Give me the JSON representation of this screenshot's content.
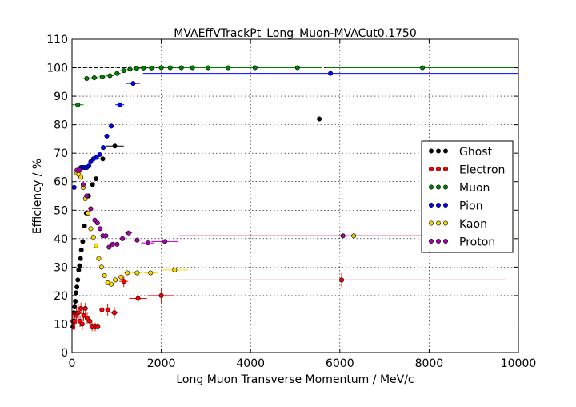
{
  "chart_data": {
    "type": "scatter",
    "title": "MVAEffVTrackPt_Long_Muon-MVACut0.1750",
    "xlabel": "Long Muon Transverse Momentum / MeV/c",
    "ylabel": "Efficiency / %",
    "xlim": [
      0,
      10000
    ],
    "ylim": [
      0,
      110
    ],
    "xticks": [
      0,
      2000,
      4000,
      6000,
      8000,
      10000
    ],
    "yticks": [
      0,
      10,
      20,
      30,
      40,
      50,
      60,
      70,
      80,
      90,
      100,
      110
    ],
    "grid": true,
    "legend_position": "center-right",
    "reference_line": 100,
    "series": [
      {
        "name": "Ghost",
        "color": "#000000",
        "points": [
          {
            "x": 20,
            "y": 9,
            "xerr": 20,
            "yerr": 0.6
          },
          {
            "x": 45,
            "y": 14,
            "xerr": 20,
            "yerr": 0.6
          },
          {
            "x": 60,
            "y": 16,
            "xerr": 20,
            "yerr": 0.6
          },
          {
            "x": 75,
            "y": 18,
            "xerr": 20,
            "yerr": 0.6
          },
          {
            "x": 90,
            "y": 21,
            "xerr": 20,
            "yerr": 0.6
          },
          {
            "x": 110,
            "y": 23,
            "xerr": 20,
            "yerr": 0.6
          },
          {
            "x": 130,
            "y": 25.5,
            "xerr": 20,
            "yerr": 0.6
          },
          {
            "x": 150,
            "y": 29,
            "xerr": 20,
            "yerr": 0.6
          },
          {
            "x": 170,
            "y": 30.5,
            "xerr": 20,
            "yerr": 0.6
          },
          {
            "x": 190,
            "y": 33,
            "xerr": 20,
            "yerr": 0.6
          },
          {
            "x": 210,
            "y": 36,
            "xerr": 20,
            "yerr": 0.6
          },
          {
            "x": 240,
            "y": 39,
            "xerr": 25,
            "yerr": 0.6
          },
          {
            "x": 280,
            "y": 44.5,
            "xerr": 25,
            "yerr": 0.6
          },
          {
            "x": 320,
            "y": 49,
            "xerr": 25,
            "yerr": 0.6
          },
          {
            "x": 370,
            "y": 55,
            "xerr": 30,
            "yerr": 0.6
          },
          {
            "x": 460,
            "y": 59,
            "xerr": 40,
            "yerr": 0.6
          },
          {
            "x": 540,
            "y": 61,
            "xerr": 40,
            "yerr": 0.6
          },
          {
            "x": 690,
            "y": 68,
            "xerr": 80,
            "yerr": 0.6
          },
          {
            "x": 960,
            "y": 72.5,
            "xerr": 200,
            "yerr": 0.6
          },
          {
            "x": 5540,
            "y": 82,
            "xerr": 4400,
            "yerr": 0.6
          }
        ]
      },
      {
        "name": "Electron",
        "color": "#ff0000",
        "points": [
          {
            "x": 20,
            "y": 11,
            "xerr": 20,
            "yerr": 3
          },
          {
            "x": 60,
            "y": 11,
            "xerr": 20,
            "yerr": 3
          },
          {
            "x": 100,
            "y": 13,
            "xerr": 20,
            "yerr": 3
          },
          {
            "x": 140,
            "y": 14,
            "xerr": 20,
            "yerr": 3
          },
          {
            "x": 180,
            "y": 11,
            "xerr": 20,
            "yerr": 2
          },
          {
            "x": 200,
            "y": 15.5,
            "xerr": 20,
            "yerr": 2
          },
          {
            "x": 230,
            "y": 10,
            "xerr": 20,
            "yerr": 2
          },
          {
            "x": 260,
            "y": 13,
            "xerr": 20,
            "yerr": 2
          },
          {
            "x": 300,
            "y": 15.5,
            "xerr": 25,
            "yerr": 2
          },
          {
            "x": 340,
            "y": 12,
            "xerr": 25,
            "yerr": 2
          },
          {
            "x": 400,
            "y": 11,
            "xerr": 30,
            "yerr": 2
          },
          {
            "x": 450,
            "y": 9,
            "xerr": 30,
            "yerr": 1.5
          },
          {
            "x": 520,
            "y": 9,
            "xerr": 30,
            "yerr": 1.5
          },
          {
            "x": 580,
            "y": 9,
            "xerr": 30,
            "yerr": 1.5
          },
          {
            "x": 670,
            "y": 15,
            "xerr": 50,
            "yerr": 2
          },
          {
            "x": 800,
            "y": 15,
            "xerr": 50,
            "yerr": 2
          },
          {
            "x": 950,
            "y": 14,
            "xerr": 80,
            "yerr": 2
          },
          {
            "x": 1160,
            "y": 25,
            "xerr": 100,
            "yerr": 2
          },
          {
            "x": 1480,
            "y": 19,
            "xerr": 200,
            "yerr": 2.5
          },
          {
            "x": 2000,
            "y": 20,
            "xerr": 300,
            "yerr": 2.5
          },
          {
            "x": 6040,
            "y": 25.5,
            "xerr": 3700,
            "yerr": 2.5
          }
        ]
      },
      {
        "name": "Muon",
        "color": "#008000",
        "points": [
          {
            "x": 130,
            "y": 87,
            "xerr": 130,
            "yerr": 0.5
          },
          {
            "x": 330,
            "y": 96.2,
            "xerr": 70,
            "yerr": 0.4
          },
          {
            "x": 500,
            "y": 96.5,
            "xerr": 80,
            "yerr": 0.3
          },
          {
            "x": 680,
            "y": 96.8,
            "xerr": 80,
            "yerr": 0.3
          },
          {
            "x": 850,
            "y": 97.2,
            "xerr": 80,
            "yerr": 0.3
          },
          {
            "x": 1010,
            "y": 98,
            "xerr": 80,
            "yerr": 0.3
          },
          {
            "x": 1160,
            "y": 99,
            "xerr": 80,
            "yerr": 0.3
          },
          {
            "x": 1300,
            "y": 99.5,
            "xerr": 70,
            "yerr": 0.3
          },
          {
            "x": 1450,
            "y": 99.8,
            "xerr": 70,
            "yerr": 0.3
          },
          {
            "x": 1600,
            "y": 99.9,
            "xerr": 80,
            "yerr": 0.2
          },
          {
            "x": 1780,
            "y": 99.9,
            "xerr": 80,
            "yerr": 0.2
          },
          {
            "x": 2000,
            "y": 100,
            "xerr": 100,
            "yerr": 0.2
          },
          {
            "x": 2200,
            "y": 100,
            "xerr": 120,
            "yerr": 0.2
          },
          {
            "x": 2450,
            "y": 100,
            "xerr": 120,
            "yerr": 0.2
          },
          {
            "x": 2700,
            "y": 100,
            "xerr": 150,
            "yerr": 0.2
          },
          {
            "x": 3050,
            "y": 100,
            "xerr": 200,
            "yerr": 0.2
          },
          {
            "x": 3500,
            "y": 100,
            "xerr": 250,
            "yerr": 0.2
          },
          {
            "x": 4100,
            "y": 100,
            "xerr": 400,
            "yerr": 0.2
          },
          {
            "x": 5050,
            "y": 100,
            "xerr": 550,
            "yerr": 0.2
          },
          {
            "x": 7850,
            "y": 100,
            "xerr": 2150,
            "yerr": 0.2
          }
        ]
      },
      {
        "name": "Pion",
        "color": "#0000ff",
        "points": [
          {
            "x": 50,
            "y": 58,
            "xerr": 50,
            "yerr": 0.5
          },
          {
            "x": 120,
            "y": 63,
            "xerr": 20,
            "yerr": 0.5
          },
          {
            "x": 160,
            "y": 64,
            "xerr": 20,
            "yerr": 0.5
          },
          {
            "x": 200,
            "y": 65,
            "xerr": 20,
            "yerr": 0.5
          },
          {
            "x": 240,
            "y": 65,
            "xerr": 20,
            "yerr": 0.5
          },
          {
            "x": 280,
            "y": 65,
            "xerr": 20,
            "yerr": 0.5
          },
          {
            "x": 330,
            "y": 65,
            "xerr": 25,
            "yerr": 0.5
          },
          {
            "x": 380,
            "y": 65.5,
            "xerr": 25,
            "yerr": 0.5
          },
          {
            "x": 420,
            "y": 67,
            "xerr": 25,
            "yerr": 0.5
          },
          {
            "x": 480,
            "y": 68,
            "xerr": 30,
            "yerr": 0.5
          },
          {
            "x": 550,
            "y": 68.5,
            "xerr": 30,
            "yerr": 0.5
          },
          {
            "x": 620,
            "y": 69.5,
            "xerr": 30,
            "yerr": 0.5
          },
          {
            "x": 700,
            "y": 72,
            "xerr": 40,
            "yerr": 0.5
          },
          {
            "x": 780,
            "y": 76,
            "xerr": 40,
            "yerr": 0.5
          },
          {
            "x": 880,
            "y": 79.5,
            "xerr": 60,
            "yerr": 0.5
          },
          {
            "x": 1070,
            "y": 87,
            "xerr": 100,
            "yerr": 0.5
          },
          {
            "x": 1370,
            "y": 94.5,
            "xerr": 150,
            "yerr": 0.5
          },
          {
            "x": 5790,
            "y": 98,
            "xerr": 4200,
            "yerr": 0.5
          }
        ]
      },
      {
        "name": "Kaon",
        "color": "#ffd700",
        "points": [
          {
            "x": 110,
            "y": 63,
            "xerr": 20,
            "yerr": 0.5
          },
          {
            "x": 150,
            "y": 62.5,
            "xerr": 20,
            "yerr": 0.5
          },
          {
            "x": 200,
            "y": 61.5,
            "xerr": 20,
            "yerr": 0.5
          },
          {
            "x": 250,
            "y": 58,
            "xerr": 20,
            "yerr": 0.5
          },
          {
            "x": 300,
            "y": 54,
            "xerr": 20,
            "yerr": 0.5
          },
          {
            "x": 360,
            "y": 49,
            "xerr": 25,
            "yerr": 0.5
          },
          {
            "x": 420,
            "y": 43.5,
            "xerr": 25,
            "yerr": 0.5
          },
          {
            "x": 480,
            "y": 40.5,
            "xerr": 25,
            "yerr": 0.5
          },
          {
            "x": 540,
            "y": 37.5,
            "xerr": 25,
            "yerr": 0.5
          },
          {
            "x": 600,
            "y": 33,
            "xerr": 30,
            "yerr": 0.5
          },
          {
            "x": 660,
            "y": 30,
            "xerr": 30,
            "yerr": 0.5
          },
          {
            "x": 730,
            "y": 27,
            "xerr": 30,
            "yerr": 0.5
          },
          {
            "x": 800,
            "y": 24.5,
            "xerr": 40,
            "yerr": 0.5
          },
          {
            "x": 880,
            "y": 24,
            "xerr": 40,
            "yerr": 0.5
          },
          {
            "x": 970,
            "y": 25.5,
            "xerr": 50,
            "yerr": 0.5
          },
          {
            "x": 1100,
            "y": 26.5,
            "xerr": 80,
            "yerr": 0.5
          },
          {
            "x": 1240,
            "y": 28,
            "xerr": 80,
            "yerr": 0.5
          },
          {
            "x": 1460,
            "y": 28,
            "xerr": 120,
            "yerr": 0.5
          },
          {
            "x": 1760,
            "y": 28,
            "xerr": 150,
            "yerr": 0.5
          },
          {
            "x": 2300,
            "y": 29,
            "xerr": 300,
            "yerr": 0.5
          },
          {
            "x": 6310,
            "y": 41,
            "xerr": 3700,
            "yerr": 0.5
          }
        ]
      },
      {
        "name": "Proton",
        "color": "#aa00aa",
        "points": [
          {
            "x": 110,
            "y": 64,
            "xerr": 20,
            "yerr": 0.5
          },
          {
            "x": 170,
            "y": 64,
            "xerr": 20,
            "yerr": 0.5
          },
          {
            "x": 250,
            "y": 59,
            "xerr": 20,
            "yerr": 0.5
          },
          {
            "x": 330,
            "y": 55,
            "xerr": 25,
            "yerr": 0.5
          },
          {
            "x": 420,
            "y": 50.5,
            "xerr": 25,
            "yerr": 0.5
          },
          {
            "x": 510,
            "y": 46.5,
            "xerr": 25,
            "yerr": 0.5
          },
          {
            "x": 570,
            "y": 45.5,
            "xerr": 25,
            "yerr": 0.5
          },
          {
            "x": 630,
            "y": 43.5,
            "xerr": 25,
            "yerr": 0.5
          },
          {
            "x": 690,
            "y": 41,
            "xerr": 30,
            "yerr": 0.5
          },
          {
            "x": 760,
            "y": 41,
            "xerr": 30,
            "yerr": 0.5
          },
          {
            "x": 830,
            "y": 37,
            "xerr": 40,
            "yerr": 0.5
          },
          {
            "x": 910,
            "y": 38,
            "xerr": 40,
            "yerr": 0.5
          },
          {
            "x": 1010,
            "y": 38,
            "xerr": 50,
            "yerr": 0.5
          },
          {
            "x": 1130,
            "y": 40,
            "xerr": 60,
            "yerr": 0.5
          },
          {
            "x": 1270,
            "y": 42,
            "xerr": 80,
            "yerr": 0.5
          },
          {
            "x": 1460,
            "y": 39.5,
            "xerr": 100,
            "yerr": 0.5
          },
          {
            "x": 1700,
            "y": 38.5,
            "xerr": 150,
            "yerr": 0.5
          },
          {
            "x": 2080,
            "y": 39,
            "xerr": 300,
            "yerr": 0.5
          },
          {
            "x": 6070,
            "y": 41,
            "xerr": 3700,
            "yerr": 0.5
          }
        ]
      }
    ]
  }
}
